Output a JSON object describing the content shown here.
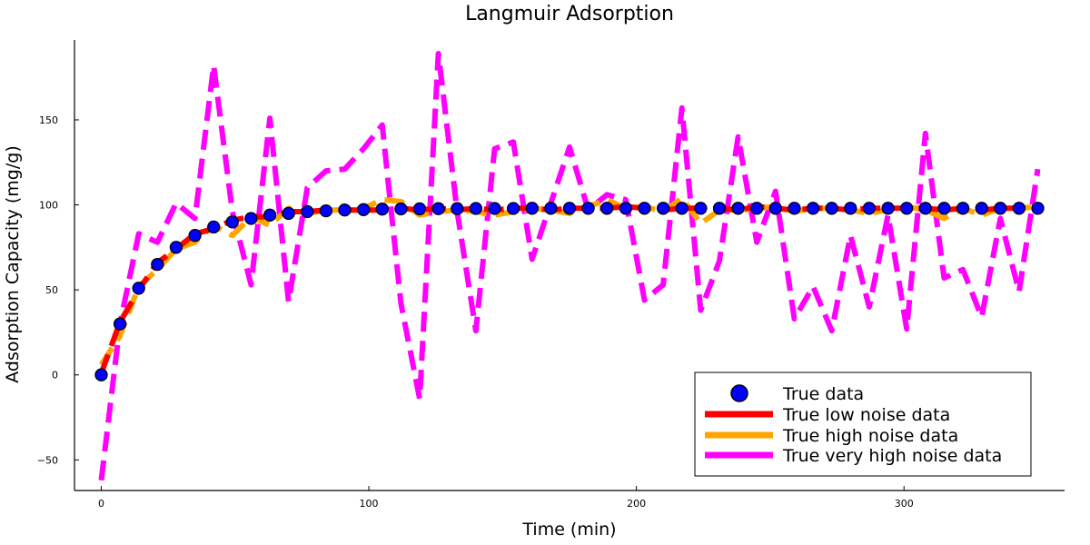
{
  "chart_data": {
    "type": "line",
    "title": "Langmuir Adsorption",
    "xlabel": "Time (min)",
    "ylabel": "Adsorption Capacity (mg/g)",
    "xlim": [
      -10,
      360
    ],
    "ylim": [
      -68,
      197
    ],
    "xticks": [
      0,
      100,
      200,
      300
    ],
    "yticks": [
      -50,
      0,
      50,
      100,
      150
    ],
    "xtick_labels": [
      "0",
      "100",
      "200",
      "300"
    ],
    "ytick_labels": [
      "−50",
      "0",
      "50",
      "100",
      "150"
    ],
    "grid": false,
    "legend_position": "bottom-right",
    "x": [
      0,
      7,
      14,
      21,
      28,
      35,
      42,
      49,
      56,
      63,
      70,
      77,
      84,
      91,
      98,
      105,
      112,
      119,
      126,
      133,
      140,
      147,
      154,
      161,
      168,
      175,
      182,
      189,
      196,
      203,
      210,
      217,
      224,
      231,
      238,
      245,
      252,
      259,
      266,
      273,
      280,
      287,
      294,
      301,
      308,
      315,
      322,
      329,
      336,
      343,
      350
    ],
    "series": [
      {
        "name": "True data",
        "style": "markers",
        "color": "#0000ff",
        "values": [
          0,
          30,
          51,
          65,
          75,
          82,
          87,
          90,
          92,
          94,
          95,
          96,
          96.5,
          97,
          97.2,
          97.5,
          97.6,
          97.7,
          97.8,
          97.8,
          97.9,
          97.9,
          97.9,
          98,
          98,
          98,
          98,
          98,
          98,
          98,
          98,
          98,
          98,
          98,
          98,
          98,
          98,
          98,
          98,
          98,
          98,
          98,
          98,
          98,
          98,
          98,
          98,
          98,
          98,
          98,
          98
        ]
      },
      {
        "name": "True low noise data",
        "style": "dashed",
        "color": "#ff0000",
        "values": [
          1,
          31,
          50,
          66,
          74,
          83,
          86,
          91,
          93,
          93,
          96,
          96,
          97,
          97,
          97,
          97,
          98,
          97,
          98,
          97,
          98,
          97,
          98,
          98,
          97,
          98,
          98,
          98,
          99,
          98,
          97,
          98,
          98,
          98,
          97,
          99,
          98,
          97,
          98,
          98,
          97,
          98,
          98,
          98,
          98,
          97,
          98,
          97,
          98,
          98,
          98
        ]
      },
      {
        "name": "True high noise data",
        "style": "dashed",
        "color": "#ffa500",
        "values": [
          6,
          23,
          52,
          62,
          74,
          78,
          88,
          82,
          93,
          88,
          98,
          95,
          97,
          97,
          98,
          103,
          102,
          94,
          96,
          97,
          96,
          94,
          96,
          98,
          97,
          95,
          99,
          103,
          98,
          99,
          96,
          104,
          89,
          97,
          97,
          98,
          99,
          96,
          98,
          98,
          97,
          95,
          97,
          99,
          97,
          92,
          98,
          94,
          98,
          98,
          99
        ]
      },
      {
        "name": "True very high noise data",
        "style": "dashed",
        "color": "#ff00ff",
        "values": [
          -62,
          30,
          83,
          78,
          101,
          92,
          182,
          96,
          53,
          151,
          43,
          110,
          120,
          121,
          133,
          147,
          42,
          -14,
          189,
          96,
          26,
          133,
          137,
          68,
          101,
          134,
          97,
          106,
          103,
          44,
          53,
          157,
          38,
          67,
          140,
          78,
          108,
          33,
          52,
          26,
          82,
          40,
          94,
          27,
          142,
          57,
          62,
          34,
          92,
          49,
          121
        ]
      }
    ]
  }
}
